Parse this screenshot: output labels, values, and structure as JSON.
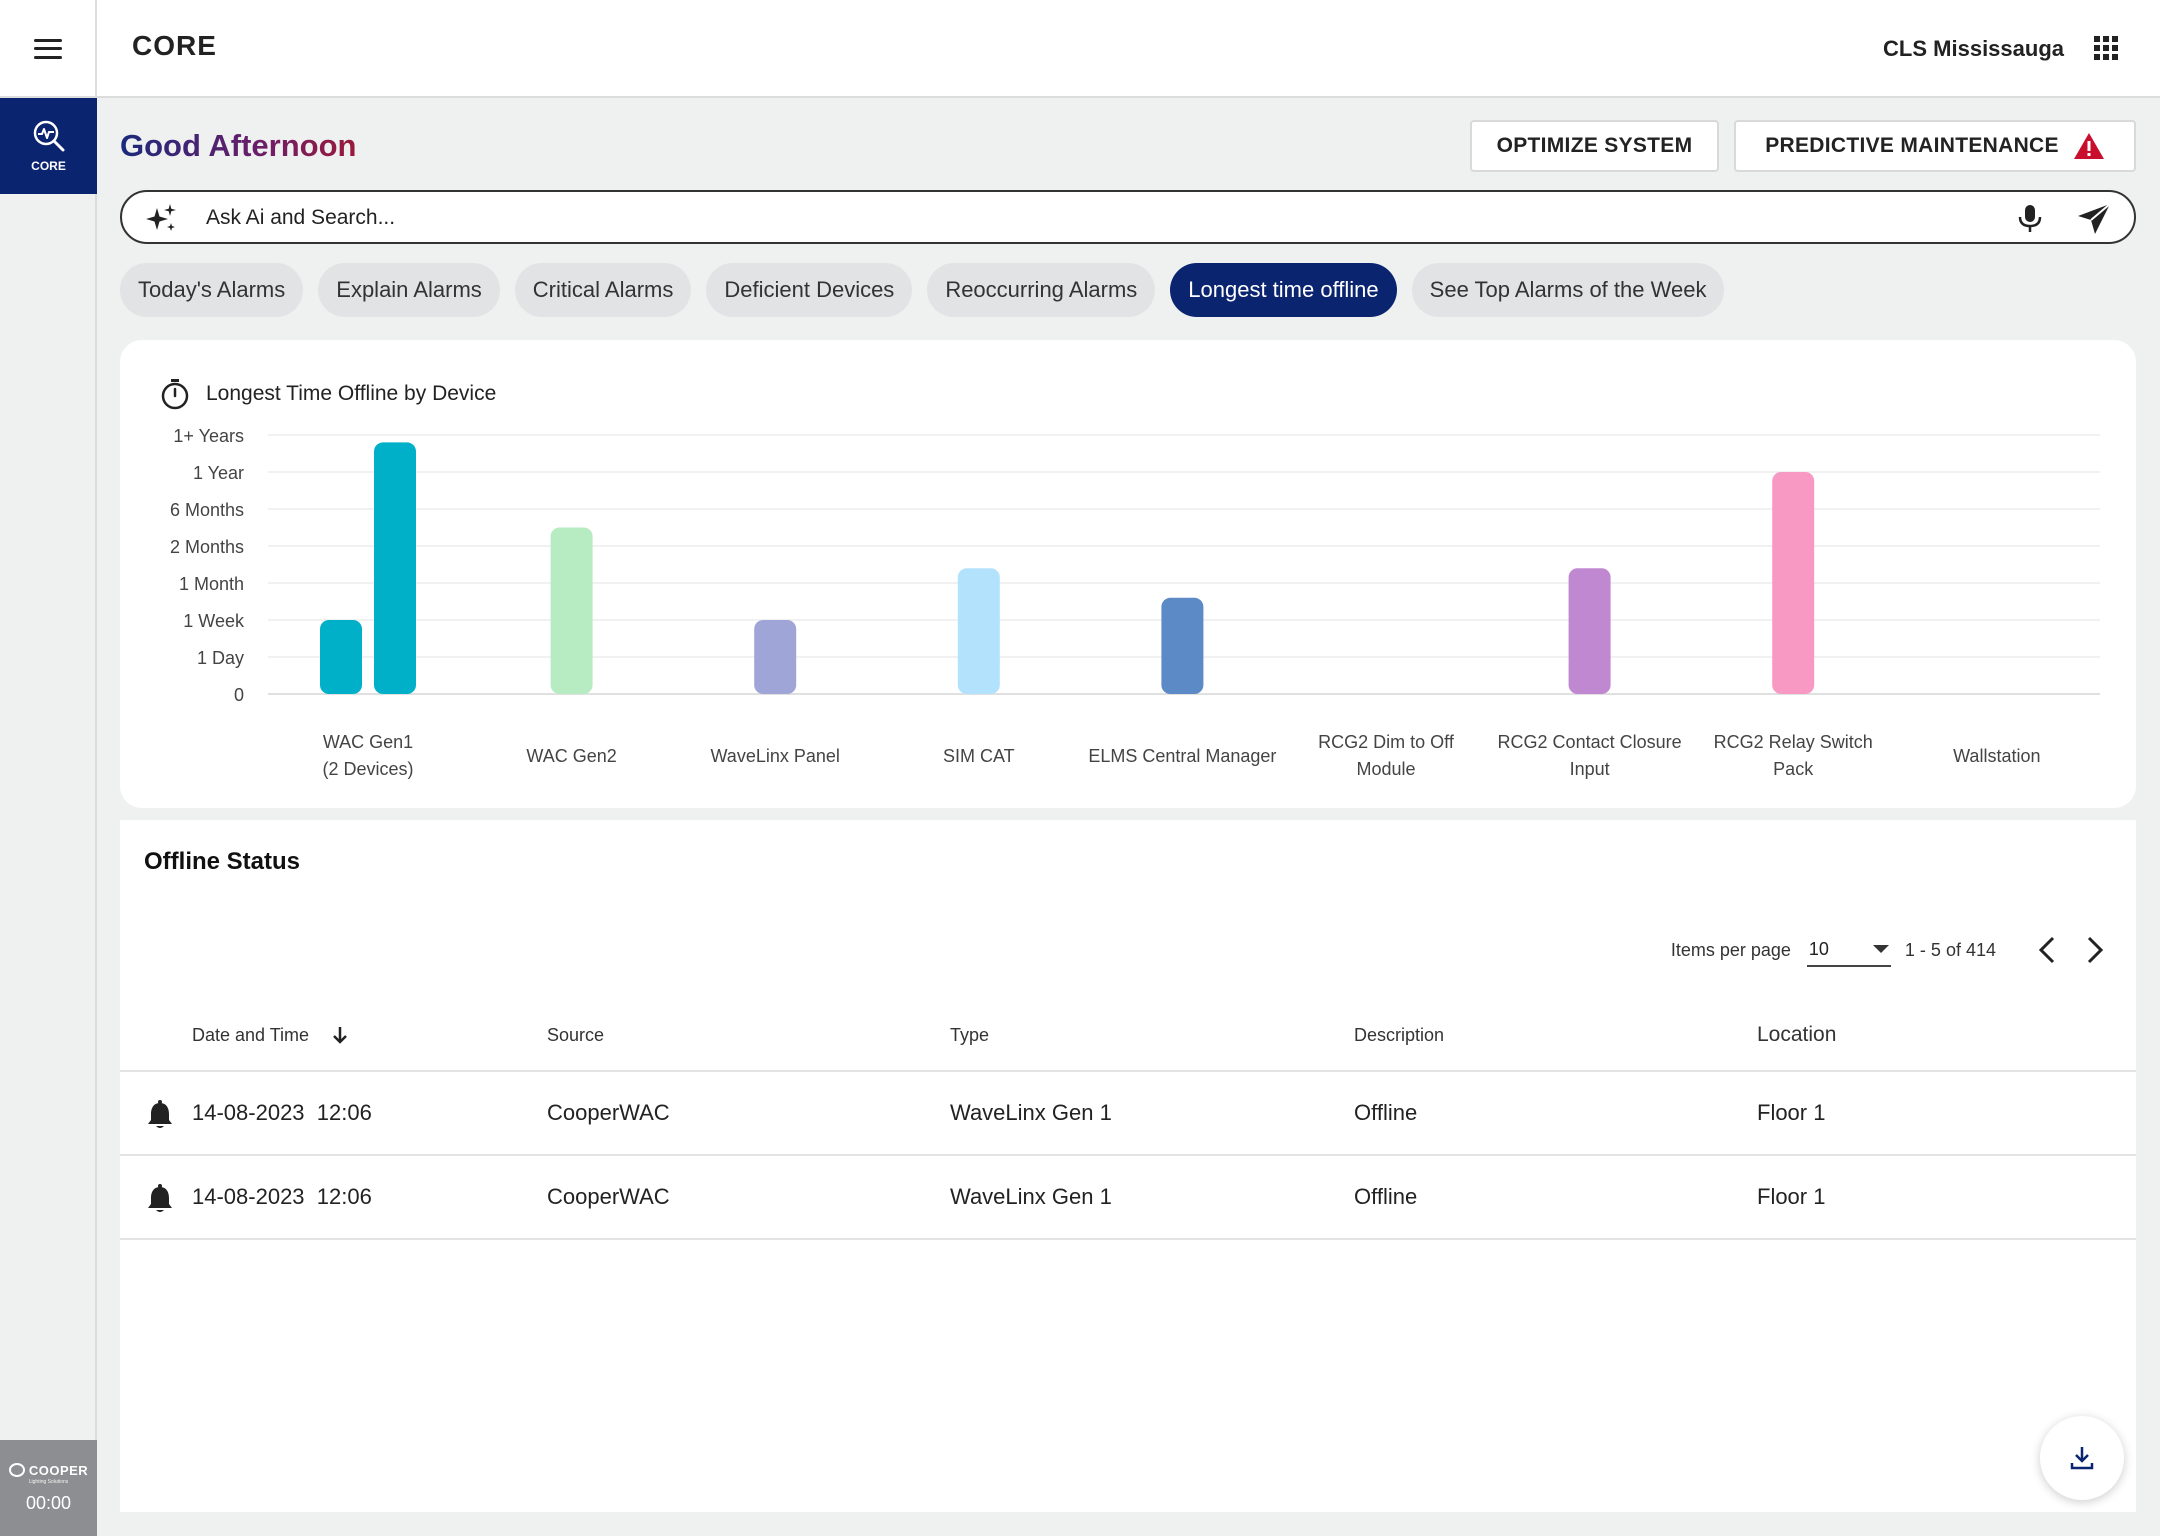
{
  "header": {
    "app_title": "CORE",
    "site_name": "CLS Mississauga"
  },
  "rail": {
    "core_label": "CORE",
    "brand": "COOPER",
    "brand_sub": "Lighting Solutions",
    "clock": "00:00"
  },
  "greeting": "Good Afternoon",
  "actions": {
    "optimize_label": "OPTIMIZE SYSTEM",
    "predictive_label": "PREDICTIVE MAINTENANCE"
  },
  "search": {
    "placeholder": "Ask Ai and Search..."
  },
  "chips": [
    "Today's Alarms",
    "Explain Alarms",
    "Critical Alarms",
    "Deficient Devices",
    "Reoccurring Alarms",
    "Longest time offline",
    "See Top Alarms of the Week"
  ],
  "active_chip": 5,
  "colors": {
    "navy": "#0b2470",
    "warning": "#c8102e"
  },
  "chart": {
    "title": "Longest Time Offline by Device"
  },
  "chart_data": {
    "type": "bar",
    "title": "Longest Time Offline by Device",
    "xlabel": "",
    "ylabel": "",
    "y_ticks": [
      "0",
      "1 Day",
      "1 Week",
      "1 Month",
      "2 Months",
      "6 Months",
      "1 Year",
      "1+ Years"
    ],
    "ylim": [
      0,
      7
    ],
    "grid": true,
    "categories": [
      [
        "WAC Gen1",
        "(2 Devices)"
      ],
      [
        "WAC Gen2"
      ],
      [
        "WaveLinx Panel"
      ],
      [
        "SIM CAT"
      ],
      [
        "ELMS Central Manager"
      ],
      [
        "RCG2 Dim to Off",
        "Module"
      ],
      [
        "RCG2 Contact Closure",
        "Input"
      ],
      [
        "RCG2 Relay Switch",
        "Pack"
      ],
      [
        "Wallstation"
      ]
    ],
    "bars": [
      {
        "category": 0,
        "value": 2.0,
        "color": "#00b0c8"
      },
      {
        "category": 0,
        "value": 6.8,
        "color": "#00b0c8"
      },
      {
        "category": 1,
        "value": 4.5,
        "color": "#b7ebc2"
      },
      {
        "category": 2,
        "value": 2.0,
        "color": "#9fa5d6"
      },
      {
        "category": 3,
        "value": 3.4,
        "color": "#b3e2fc"
      },
      {
        "category": 4,
        "value": 2.6,
        "color": "#5b8ac6"
      },
      {
        "category": 6,
        "value": 3.4,
        "color": "#c088d0"
      },
      {
        "category": 7,
        "value": 6.0,
        "color": "#f799c2"
      }
    ]
  },
  "table": {
    "title": "Offline Status",
    "pager": {
      "items_label": "Items per page",
      "items_value": "10",
      "range": "1 - 5 of 414"
    },
    "columns": [
      "Date and Time",
      "Source",
      "Type",
      "Description",
      "Location"
    ],
    "rows": [
      {
        "date": "14-08-2023",
        "time": "12:06",
        "source": "CooperWAC",
        "type": "WaveLinx Gen 1",
        "description": "Offline",
        "location": "Floor 1"
      },
      {
        "date": "14-08-2023",
        "time": "12:06",
        "source": "CooperWAC",
        "type": "WaveLinx Gen 1",
        "description": "Offline",
        "location": "Floor 1"
      }
    ]
  }
}
